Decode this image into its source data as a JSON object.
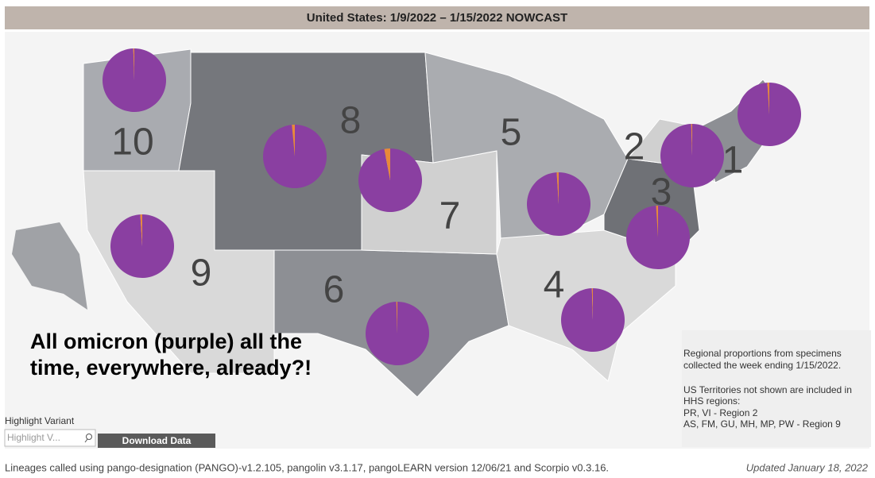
{
  "header": {
    "title": "United States: 1/9/2022 – 1/15/2022 NOWCAST"
  },
  "map": {
    "colors": [
      "#8a3fa1",
      "#e8893a"
    ],
    "regions": [
      {
        "label": "10",
        "values": [
          99.5,
          0.5
        ]
      },
      {
        "label": "8",
        "values": [
          98.5,
          1.5
        ]
      },
      {
        "label": "7",
        "values": [
          97,
          3
        ]
      },
      {
        "label": "5",
        "values": [
          99,
          1
        ]
      },
      {
        "label": "2",
        "values": [
          99.5,
          0.5
        ]
      },
      {
        "label": "1",
        "values": [
          99,
          1
        ]
      },
      {
        "label": "3",
        "values": [
          99,
          1
        ]
      },
      {
        "label": "9",
        "values": [
          99,
          1
        ]
      },
      {
        "label": "6",
        "values": [
          99.5,
          0.5
        ]
      },
      {
        "label": "4",
        "values": [
          99.5,
          0.5
        ]
      }
    ]
  },
  "annotation": {
    "lines": [
      "All omicron (purple) all the",
      "time, everywhere, already?!"
    ]
  },
  "info": {
    "lines": [
      "Regional proportions from specimens",
      "collected the week ending 1/15/2022.",
      "US Territories not shown are included in",
      "HHS regions:",
      "PR, VI - Region 2",
      "AS, FM, GU, MH, MP, PW - Region 9"
    ]
  },
  "controls": {
    "highlight_label": "Highlight Variant",
    "search_placeholder": "Highlight V...",
    "download": "Download Data"
  },
  "footer": {
    "lineages": "Lineages called using pango-designation (PANGO)-v1.2.105, pangolin v3.1.17, pangoLEARN version 12/06/21 and Scorpio v0.3.16.",
    "updated": "Updated January 18, 2022"
  }
}
